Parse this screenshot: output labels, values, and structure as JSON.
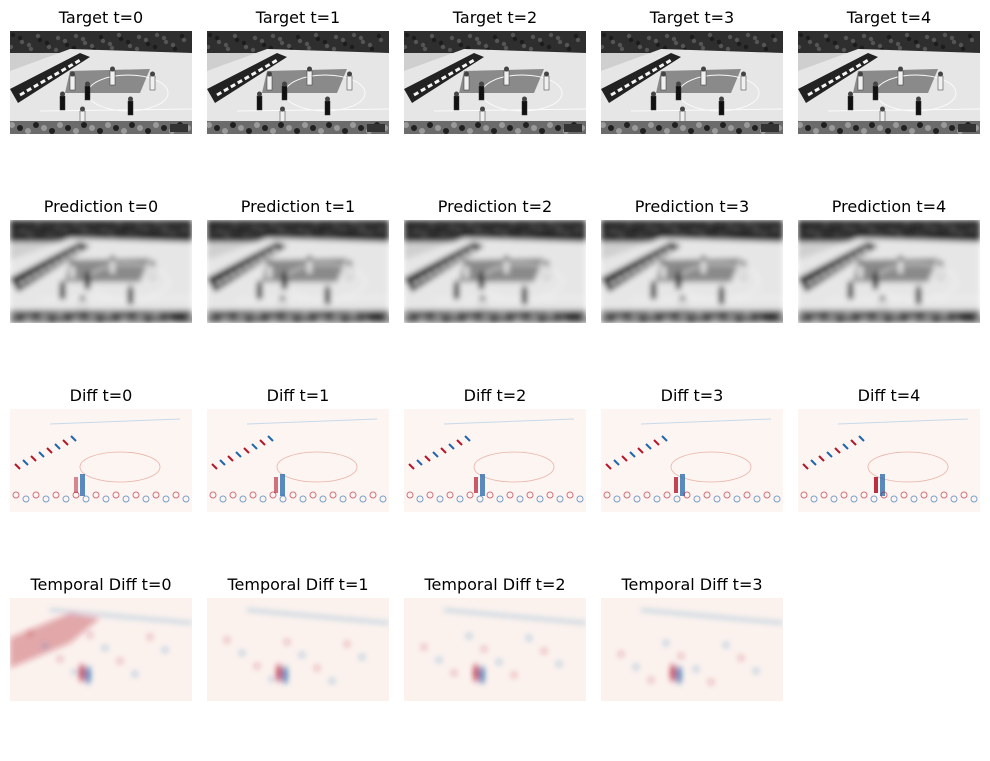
{
  "rows": [
    {
      "kind": "target",
      "titles": [
        "Target t=0",
        "Target t=1",
        "Target t=2",
        "Target t=3",
        "Target t=4"
      ]
    },
    {
      "kind": "prediction",
      "titles": [
        "Prediction t=0",
        "Prediction t=1",
        "Prediction t=2",
        "Prediction t=3",
        "Prediction t=4"
      ]
    },
    {
      "kind": "diff",
      "titles": [
        "Diff t=0",
        "Diff t=1",
        "Diff t=2",
        "Diff t=3",
        "Diff t=4"
      ]
    },
    {
      "kind": "temporal",
      "titles": [
        "Temporal Diff t=0",
        "Temporal Diff t=1",
        "Temporal Diff t=2",
        "Temporal Diff t=3"
      ]
    }
  ],
  "colors": {
    "negative": "#2166ac",
    "positive": "#b2182b",
    "court": "#d9d9d9",
    "crowd": "#3a3a3a"
  }
}
